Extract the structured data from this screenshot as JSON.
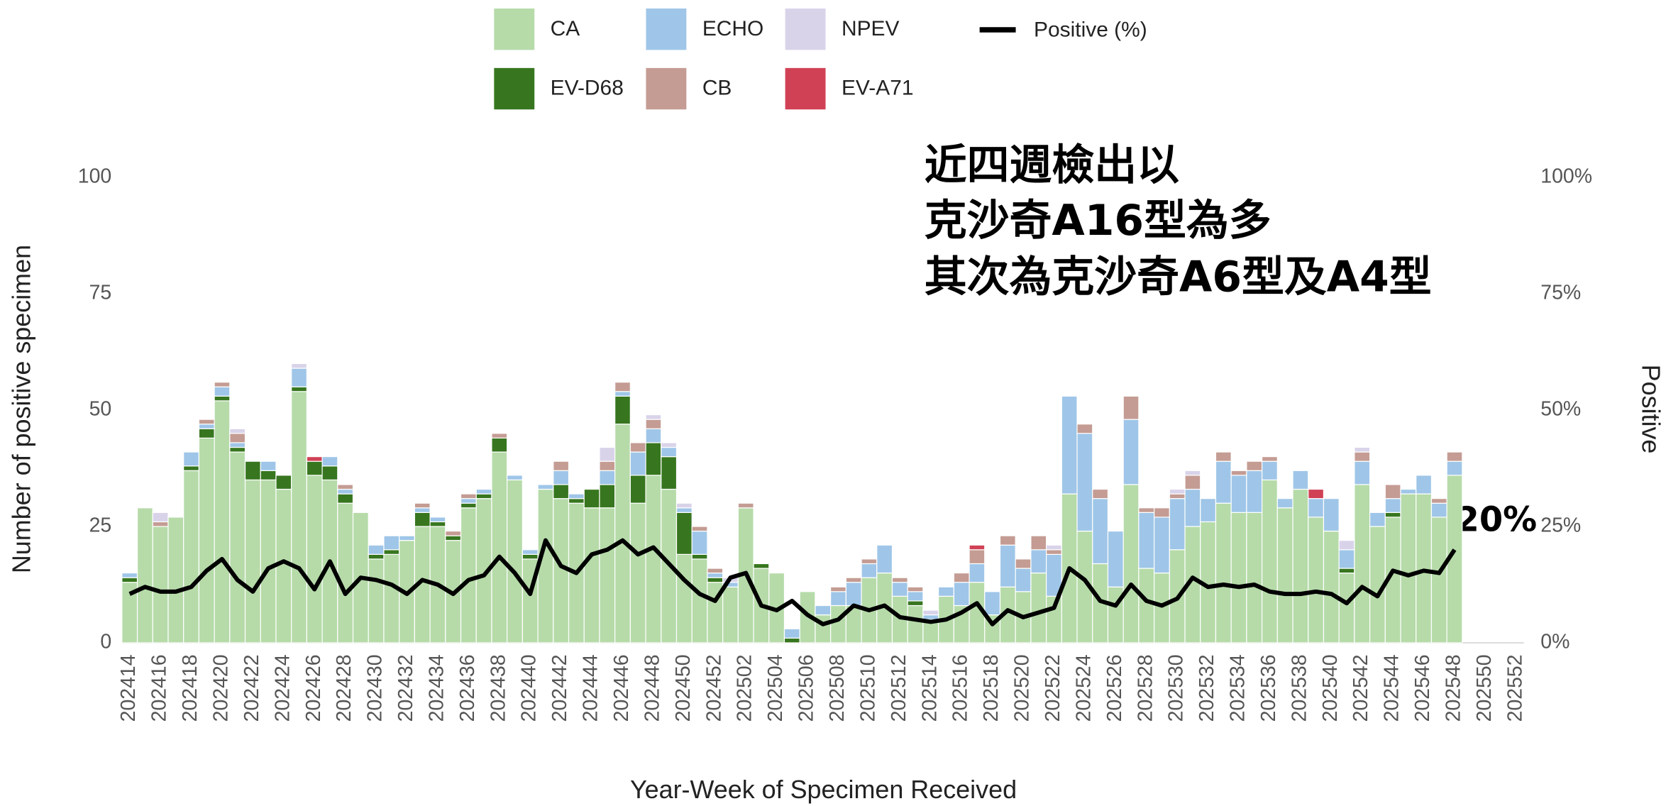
{
  "chart_data": {
    "type": "bar",
    "stacked": true,
    "x_label": "Year-Week of Specimen Received",
    "y_label": "Number of positive specimen",
    "y2_label": "Positive",
    "annotations": [
      "近四週檢出以",
      "克沙奇A16型為多",
      "其次為克沙奇A6型及A4型",
      "20%"
    ],
    "categories": [
      "202414",
      null,
      "202416",
      null,
      "202418",
      null,
      "202420",
      null,
      "202422",
      null,
      "202424",
      null,
      "202426",
      null,
      "202428",
      null,
      "202430",
      null,
      "202432",
      null,
      "202434",
      null,
      "202436",
      null,
      "202438",
      null,
      "202440",
      null,
      "202442",
      null,
      "202444",
      null,
      "202446",
      null,
      "202448",
      null,
      "202450",
      null,
      "202452",
      null,
      "202502",
      null,
      "202504",
      null,
      "202506",
      null,
      "202508",
      null,
      "202510",
      null,
      "202512",
      null,
      "202514",
      null,
      "202516",
      null,
      "202518",
      null,
      "202520",
      null,
      "202522",
      null,
      "202524",
      null,
      "202526",
      null,
      "202528",
      null,
      "202530",
      null,
      "202532",
      null,
      "202534",
      null,
      "202536",
      null,
      "202538",
      null,
      "202540",
      null,
      "202542",
      null,
      "202544",
      null,
      "202546",
      null,
      "202548",
      null,
      "202550",
      null,
      "202552"
    ],
    "ylim": [
      0,
      100
    ],
    "yticks": [
      0,
      25,
      50,
      75,
      100
    ],
    "y2lim": [
      0,
      100
    ],
    "y2ticks": [
      {
        "value": 0,
        "label": "0%"
      },
      {
        "value": 25,
        "label": "25%"
      },
      {
        "value": 50,
        "label": "50%"
      },
      {
        "value": 75,
        "label": "75%"
      },
      {
        "value": 100,
        "label": "100%"
      }
    ],
    "series": [
      {
        "name": "CA",
        "color": "#b6dba9",
        "values": [
          13,
          29,
          25,
          27,
          37,
          44,
          52,
          41,
          35,
          35,
          33,
          54,
          36,
          35,
          30,
          28,
          18,
          19,
          22,
          25,
          25,
          22,
          29,
          31,
          41,
          35,
          18,
          33,
          31,
          30,
          29,
          29,
          47,
          30,
          36,
          33,
          19,
          18,
          13,
          12,
          29,
          16,
          15,
          0,
          11,
          6,
          8,
          8,
          14,
          15,
          10,
          8,
          5,
          10,
          8,
          13,
          6,
          12,
          11,
          15,
          10,
          32,
          24,
          17,
          12,
          34,
          16,
          15,
          20,
          25,
          26,
          30,
          28,
          28,
          35,
          29,
          33,
          27,
          24,
          15,
          34,
          25,
          27,
          32,
          32,
          27,
          36,
          null,
          null,
          null,
          null
        ]
      },
      {
        "name": "EV-D68",
        "color": "#37761f",
        "values": [
          1,
          0,
          0,
          0,
          1,
          2,
          1,
          1,
          4,
          2,
          3,
          1,
          3,
          3,
          2,
          0,
          1,
          1,
          0,
          3,
          1,
          1,
          1,
          1,
          3,
          0,
          1,
          0,
          3,
          1,
          4,
          5,
          6,
          6,
          7,
          7,
          9,
          1,
          1,
          0,
          0,
          1,
          0,
          1,
          0,
          0,
          0,
          0,
          0,
          0,
          0,
          1,
          0,
          0,
          0,
          0,
          0,
          0,
          0,
          0,
          0,
          0,
          0,
          0,
          0,
          0,
          0,
          0,
          0,
          0,
          0,
          0,
          0,
          0,
          0,
          0,
          0,
          0,
          0,
          1,
          0,
          0,
          1,
          0,
          0,
          0,
          0,
          null,
          null,
          null,
          null
        ]
      },
      {
        "name": "ECHO",
        "color": "#9fc6e8",
        "values": [
          1,
          0,
          0,
          0,
          3,
          1,
          2,
          1,
          0,
          2,
          0,
          4,
          0,
          2,
          1,
          0,
          2,
          3,
          1,
          1,
          1,
          0,
          1,
          1,
          0,
          1,
          1,
          1,
          3,
          1,
          0,
          3,
          1,
          5,
          3,
          2,
          1,
          5,
          1,
          1,
          0,
          0,
          0,
          2,
          0,
          2,
          3,
          5,
          3,
          6,
          3,
          2,
          1,
          2,
          5,
          4,
          5,
          9,
          5,
          5,
          9,
          21,
          21,
          14,
          12,
          14,
          12,
          12,
          11,
          8,
          5,
          9,
          8,
          9,
          4,
          2,
          4,
          4,
          7,
          4,
          5,
          3,
          3,
          1,
          4,
          3,
          3,
          null,
          null,
          null,
          null
        ]
      },
      {
        "name": "CB",
        "color": "#c49c93",
        "values": [
          0,
          0,
          1,
          0,
          0,
          1,
          1,
          2,
          0,
          0,
          0,
          0,
          0,
          0,
          1,
          0,
          0,
          0,
          0,
          1,
          0,
          1,
          1,
          0,
          1,
          0,
          0,
          0,
          2,
          0,
          0,
          2,
          2,
          2,
          2,
          0,
          0,
          1,
          1,
          0,
          1,
          0,
          0,
          0,
          0,
          0,
          1,
          1,
          1,
          0,
          1,
          1,
          0,
          0,
          2,
          3,
          0,
          2,
          2,
          3,
          1,
          0,
          2,
          2,
          0,
          5,
          1,
          2,
          1,
          3,
          0,
          2,
          1,
          2,
          1,
          0,
          0,
          0,
          0,
          0,
          2,
          0,
          3,
          0,
          0,
          1,
          2,
          null,
          null,
          null,
          null
        ]
      },
      {
        "name": "NPEV",
        "color": "#d9d3ea",
        "values": [
          0,
          0,
          2,
          0,
          0,
          0,
          0,
          1,
          0,
          0,
          0,
          1,
          0,
          0,
          0,
          0,
          0,
          0,
          0,
          0,
          0,
          0,
          0,
          0,
          0,
          0,
          0,
          0,
          0,
          0,
          0,
          3,
          0,
          0,
          1,
          1,
          1,
          0,
          0,
          1,
          0,
          0,
          0,
          0,
          0,
          0,
          0,
          0,
          0,
          0,
          0,
          0,
          1,
          0,
          0,
          0,
          0,
          0,
          0,
          0,
          1,
          0,
          0,
          0,
          0,
          0,
          0,
          0,
          1,
          1,
          0,
          0,
          0,
          0,
          0,
          0,
          0,
          0,
          0,
          2,
          1,
          0,
          0,
          0,
          0,
          0,
          0,
          null,
          null,
          null,
          null
        ]
      },
      {
        "name": "EV-A71",
        "color": "#d04155",
        "values": [
          0,
          0,
          0,
          0,
          0,
          0,
          0,
          0,
          0,
          0,
          0,
          0,
          1,
          0,
          0,
          0,
          0,
          0,
          0,
          0,
          0,
          0,
          0,
          0,
          0,
          0,
          0,
          0,
          0,
          0,
          0,
          0,
          0,
          0,
          0,
          0,
          0,
          0,
          0,
          0,
          0,
          0,
          0,
          0,
          0,
          0,
          0,
          0,
          0,
          0,
          0,
          0,
          0,
          0,
          0,
          1,
          0,
          0,
          0,
          0,
          0,
          0,
          0,
          0,
          0,
          0,
          0,
          0,
          0,
          0,
          0,
          0,
          0,
          0,
          0,
          0,
          0,
          2,
          0,
          0,
          0,
          0,
          0,
          0,
          0,
          0,
          0,
          null,
          null,
          null,
          null
        ]
      },
      {
        "name": "Positive (%)",
        "color": "#000000",
        "axis": "y2",
        "values": [
          10.5,
          12,
          11,
          11,
          12,
          15.5,
          18,
          13.5,
          11,
          16,
          17.5,
          16,
          11.5,
          17.5,
          10.5,
          14,
          13.5,
          12.5,
          10.5,
          13.5,
          12.5,
          10.5,
          13.5,
          14.5,
          18.5,
          15,
          10.5,
          22,
          16.5,
          15,
          19,
          20,
          22,
          19,
          20.5,
          17,
          13.5,
          10.5,
          9,
          14,
          15,
          8,
          7,
          9,
          6,
          4,
          5,
          8,
          7,
          8,
          5.5,
          5,
          4.5,
          5,
          6.5,
          8.5,
          4,
          7,
          5.5,
          6.5,
          7.5,
          16,
          13.5,
          9,
          8,
          12.5,
          9,
          8,
          9.5,
          14,
          12,
          12.5,
          12,
          12.5,
          11,
          10.5,
          10.5,
          11,
          10.5,
          8.5,
          12,
          10,
          15.5,
          14.5,
          15.5,
          15,
          20,
          null,
          null,
          null,
          null
        ]
      }
    ]
  }
}
